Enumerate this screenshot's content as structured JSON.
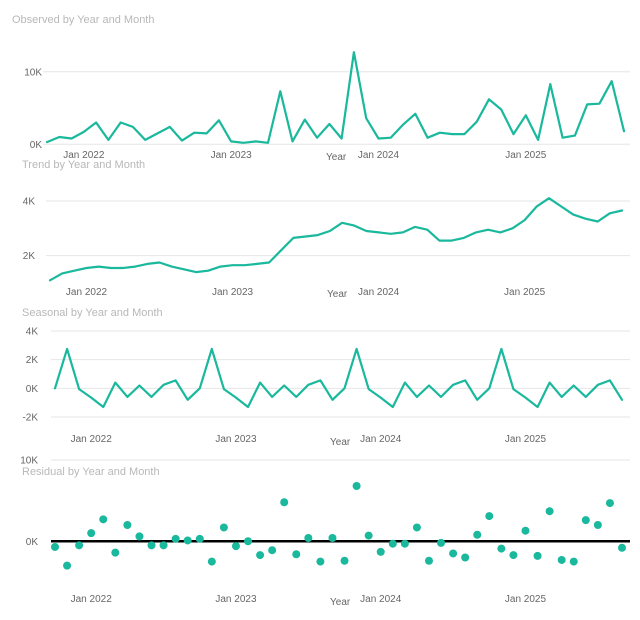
{
  "colors": {
    "series": "#1ab89c",
    "grid": "#e6e6e6",
    "zero_line": "#000000"
  },
  "chart_data": [
    {
      "type": "line",
      "title": "Observed by Year and Month",
      "xlabel": "Year",
      "ylabel": "",
      "grid": true,
      "yticks": [
        0,
        10000
      ],
      "yticklabels": [
        "0K",
        "10K"
      ],
      "ylim": [
        -100,
        13000
      ],
      "xticklabels": [
        "Jan 2022",
        "Jan 2023",
        "Jan 2024",
        "Jan 2025"
      ],
      "values": [
        300,
        1000,
        800,
        1700,
        3000,
        600,
        3000,
        2400,
        600,
        1500,
        2400,
        500,
        1600,
        1500,
        3300,
        400,
        200,
        400,
        200,
        7300,
        400,
        3400,
        900,
        2800,
        800,
        12700,
        3600,
        800,
        900,
        2700,
        4200,
        900,
        1600,
        1400,
        1400,
        3100,
        6200,
        4800,
        1400,
        4000,
        600,
        8300,
        900,
        1200,
        5500,
        5600,
        8700,
        1800
      ]
    },
    {
      "type": "line",
      "title": "Trend by Year and Month",
      "xlabel": "Year",
      "ylabel": "",
      "grid": true,
      "yticks": [
        2000,
        4000
      ],
      "yticklabels": [
        "2K",
        "4K"
      ],
      "ylim": [
        1000,
        4400
      ],
      "xticklabels": [
        "Jan 2022",
        "Jan 2023",
        "Jan 2024",
        "Jan 2025"
      ],
      "values": [
        1100,
        1350,
        1450,
        1550,
        1600,
        1550,
        1550,
        1600,
        1700,
        1750,
        1600,
        1500,
        1400,
        1450,
        1600,
        1650,
        1650,
        1700,
        1750,
        2200,
        2650,
        2700,
        2750,
        2900,
        3200,
        3100,
        2900,
        2850,
        2800,
        2850,
        3050,
        2950,
        2550,
        2550,
        2650,
        2850,
        2950,
        2850,
        3000,
        3300,
        3800,
        4100,
        3800,
        3500,
        3350,
        3250,
        3550,
        3650
      ]
    },
    {
      "type": "line",
      "title": "Seasonal by Year and Month",
      "xlabel": "Year",
      "ylabel": "",
      "grid": true,
      "yticks": [
        -2000,
        0,
        2000,
        4000
      ],
      "yticklabels": [
        "-2K",
        "0K",
        "2K",
        "4K"
      ],
      "ylim": [
        -2000,
        4000
      ],
      "xticklabels": [
        "Jan 2022",
        "Jan 2023",
        "Jan 2024",
        "Jan 2025"
      ],
      "values": [
        0,
        2750,
        -50,
        -650,
        -1300,
        400,
        -600,
        200,
        -600,
        250,
        550,
        -800,
        0,
        2750,
        -50,
        -650,
        -1300,
        400,
        -600,
        200,
        -600,
        250,
        550,
        -800,
        0,
        2750,
        -50,
        -650,
        -1300,
        400,
        -600,
        200,
        -600,
        250,
        550,
        -800,
        0,
        2750,
        -50,
        -650,
        -1300,
        400,
        -600,
        200,
        -600,
        250,
        550,
        -800
      ]
    },
    {
      "type": "scatter",
      "title": "Residual by Year and Month",
      "xlabel": "Year",
      "ylabel": "",
      "grid": true,
      "yticks": [
        0,
        10000
      ],
      "yticklabels": [
        "0K",
        "10K"
      ],
      "ylim": [
        -6000,
        10000
      ],
      "xticklabels": [
        "Jan 2022",
        "Jan 2023",
        "Jan 2024",
        "Jan 2025"
      ],
      "values": [
        -700,
        -3000,
        -500,
        1000,
        2700,
        -1400,
        2000,
        600,
        -500,
        -500,
        300,
        100,
        300,
        -2500,
        1700,
        -600,
        0,
        -1700,
        -1100,
        4800,
        -1600,
        400,
        -2500,
        400,
        -2400,
        6800,
        700,
        -1300,
        -300,
        -300,
        1700,
        -2400,
        -200,
        -1500,
        -2000,
        800,
        3100,
        -900,
        -1700,
        1300,
        -1800,
        3700,
        -2300,
        -2500,
        2600,
        2000,
        4700,
        -800
      ]
    }
  ]
}
